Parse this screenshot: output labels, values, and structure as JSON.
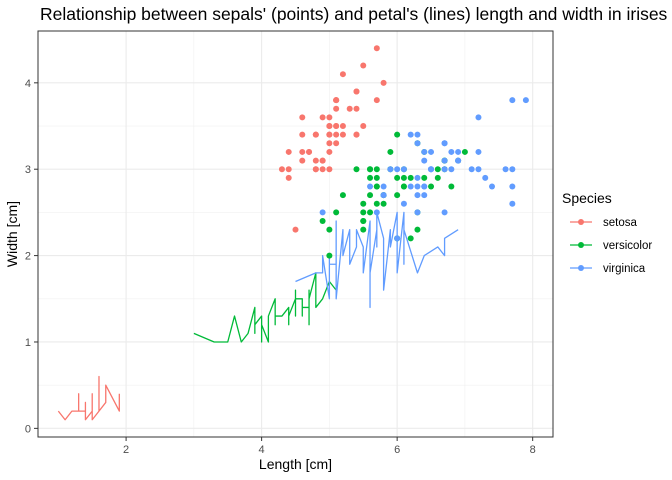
{
  "chart_data": {
    "type": "scatter",
    "title": "Relationship between sepals' (points) and petal's (lines) length and width in irises",
    "xlabel": "Length [cm]",
    "ylabel": "Width [cm]",
    "xlim": [
      0.7,
      8.3
    ],
    "ylim": [
      -0.1,
      4.6
    ],
    "x_ticks": [
      2,
      4,
      6,
      8
    ],
    "y_ticks": [
      0,
      1,
      2,
      3,
      4
    ],
    "grid": true,
    "legend": {
      "title": "Species",
      "placement": "right"
    },
    "series": [
      {
        "name": "setosa",
        "color": "#F8766D",
        "points": [
          [
            5.1,
            3.5
          ],
          [
            4.9,
            3.0
          ],
          [
            4.7,
            3.2
          ],
          [
            4.6,
            3.1
          ],
          [
            5.0,
            3.6
          ],
          [
            5.4,
            3.9
          ],
          [
            4.6,
            3.4
          ],
          [
            5.0,
            3.4
          ],
          [
            4.4,
            2.9
          ],
          [
            4.9,
            3.1
          ],
          [
            5.4,
            3.7
          ],
          [
            4.8,
            3.4
          ],
          [
            4.8,
            3.0
          ],
          [
            4.3,
            3.0
          ],
          [
            5.8,
            4.0
          ],
          [
            5.7,
            4.4
          ],
          [
            5.4,
            3.9
          ],
          [
            5.1,
            3.5
          ],
          [
            5.7,
            3.8
          ],
          [
            5.1,
            3.8
          ],
          [
            5.4,
            3.4
          ],
          [
            5.1,
            3.7
          ],
          [
            4.6,
            3.6
          ],
          [
            5.1,
            3.3
          ],
          [
            4.8,
            3.4
          ],
          [
            5.0,
            3.0
          ],
          [
            5.0,
            3.4
          ],
          [
            5.2,
            3.5
          ],
          [
            5.2,
            3.4
          ],
          [
            4.7,
            3.2
          ],
          [
            4.8,
            3.1
          ],
          [
            5.4,
            3.4
          ],
          [
            5.2,
            4.1
          ],
          [
            5.5,
            4.2
          ],
          [
            4.9,
            3.1
          ],
          [
            5.0,
            3.2
          ],
          [
            5.5,
            3.5
          ],
          [
            4.9,
            3.6
          ],
          [
            4.4,
            3.0
          ],
          [
            5.1,
            3.4
          ],
          [
            5.0,
            3.5
          ],
          [
            4.5,
            2.3
          ],
          [
            4.4,
            3.2
          ],
          [
            5.0,
            3.5
          ],
          [
            5.1,
            3.8
          ],
          [
            4.8,
            3.0
          ],
          [
            5.1,
            3.8
          ],
          [
            4.6,
            3.2
          ],
          [
            5.3,
            3.7
          ],
          [
            5.0,
            3.3
          ]
        ],
        "line": [
          [
            1.0,
            0.2
          ],
          [
            1.1,
            0.1
          ],
          [
            1.2,
            0.2
          ],
          [
            1.3,
            0.2
          ],
          [
            1.3,
            0.4
          ],
          [
            1.3,
            0.2
          ],
          [
            1.4,
            0.2
          ],
          [
            1.4,
            0.3
          ],
          [
            1.4,
            0.1
          ],
          [
            1.5,
            0.2
          ],
          [
            1.5,
            0.4
          ],
          [
            1.5,
            0.1
          ],
          [
            1.6,
            0.2
          ],
          [
            1.6,
            0.6
          ],
          [
            1.6,
            0.2
          ],
          [
            1.7,
            0.3
          ],
          [
            1.7,
            0.5
          ],
          [
            1.9,
            0.2
          ],
          [
            1.9,
            0.4
          ]
        ]
      },
      {
        "name": "versicolor",
        "color": "#00BA38",
        "points": [
          [
            7.0,
            3.2
          ],
          [
            6.4,
            3.2
          ],
          [
            6.9,
            3.1
          ],
          [
            5.5,
            2.3
          ],
          [
            6.5,
            2.8
          ],
          [
            5.7,
            2.8
          ],
          [
            6.3,
            3.3
          ],
          [
            4.9,
            2.4
          ],
          [
            6.6,
            2.9
          ],
          [
            5.2,
            2.7
          ],
          [
            5.0,
            2.0
          ],
          [
            5.9,
            3.0
          ],
          [
            6.0,
            2.2
          ],
          [
            6.1,
            2.9
          ],
          [
            5.6,
            2.9
          ],
          [
            6.7,
            3.1
          ],
          [
            5.6,
            3.0
          ],
          [
            5.8,
            2.7
          ],
          [
            6.2,
            2.2
          ],
          [
            5.6,
            2.5
          ],
          [
            5.9,
            3.2
          ],
          [
            6.1,
            2.8
          ],
          [
            6.3,
            2.5
          ],
          [
            6.1,
            2.8
          ],
          [
            6.4,
            2.9
          ],
          [
            6.6,
            3.0
          ],
          [
            6.8,
            2.8
          ],
          [
            6.7,
            3.0
          ],
          [
            6.0,
            2.9
          ],
          [
            5.7,
            2.6
          ],
          [
            5.5,
            2.4
          ],
          [
            5.5,
            2.4
          ],
          [
            5.8,
            2.7
          ],
          [
            6.0,
            2.7
          ],
          [
            5.4,
            3.0
          ],
          [
            6.0,
            3.4
          ],
          [
            6.7,
            3.1
          ],
          [
            6.3,
            2.3
          ],
          [
            5.6,
            3.0
          ],
          [
            5.5,
            2.5
          ],
          [
            5.5,
            2.6
          ],
          [
            6.1,
            3.0
          ],
          [
            5.8,
            2.6
          ],
          [
            5.0,
            2.3
          ],
          [
            5.6,
            2.7
          ],
          [
            5.7,
            3.0
          ],
          [
            5.7,
            2.9
          ],
          [
            6.2,
            2.9
          ],
          [
            5.1,
            2.5
          ],
          [
            5.7,
            2.8
          ]
        ],
        "line": [
          [
            3.0,
            1.1
          ],
          [
            3.3,
            1.0
          ],
          [
            3.5,
            1.0
          ],
          [
            3.6,
            1.3
          ],
          [
            3.7,
            1.0
          ],
          [
            3.8,
            1.1
          ],
          [
            3.9,
            1.4
          ],
          [
            3.9,
            1.1
          ],
          [
            3.9,
            1.2
          ],
          [
            4.0,
            1.3
          ],
          [
            4.0,
            1.0
          ],
          [
            4.0,
            1.2
          ],
          [
            4.1,
            1.0
          ],
          [
            4.1,
            1.3
          ],
          [
            4.2,
            1.5
          ],
          [
            4.2,
            1.2
          ],
          [
            4.2,
            1.3
          ],
          [
            4.3,
            1.3
          ],
          [
            4.4,
            1.4
          ],
          [
            4.4,
            1.2
          ],
          [
            4.4,
            1.3
          ],
          [
            4.5,
            1.5
          ],
          [
            4.5,
            1.3
          ],
          [
            4.5,
            1.6
          ],
          [
            4.5,
            1.5
          ],
          [
            4.6,
            1.5
          ],
          [
            4.6,
            1.3
          ],
          [
            4.6,
            1.4
          ],
          [
            4.7,
            1.4
          ],
          [
            4.7,
            1.6
          ],
          [
            4.7,
            1.2
          ],
          [
            4.7,
            1.5
          ],
          [
            4.8,
            1.8
          ],
          [
            4.8,
            1.4
          ],
          [
            4.9,
            1.5
          ],
          [
            4.9,
            1.5
          ],
          [
            5.0,
            1.7
          ],
          [
            5.1,
            1.6
          ]
        ]
      },
      {
        "name": "virginica",
        "color": "#619CFF",
        "points": [
          [
            6.3,
            3.3
          ],
          [
            5.8,
            2.7
          ],
          [
            7.1,
            3.0
          ],
          [
            6.3,
            2.9
          ],
          [
            6.5,
            3.0
          ],
          [
            7.6,
            3.0
          ],
          [
            4.9,
            2.5
          ],
          [
            7.3,
            2.9
          ],
          [
            6.7,
            2.5
          ],
          [
            7.2,
            3.6
          ],
          [
            6.5,
            3.2
          ],
          [
            6.4,
            2.7
          ],
          [
            6.8,
            3.0
          ],
          [
            5.7,
            2.5
          ],
          [
            5.8,
            2.8
          ],
          [
            6.4,
            3.2
          ],
          [
            6.5,
            3.0
          ],
          [
            7.7,
            3.8
          ],
          [
            7.7,
            2.6
          ],
          [
            6.0,
            2.2
          ],
          [
            6.9,
            3.2
          ],
          [
            5.6,
            2.8
          ],
          [
            7.7,
            2.8
          ],
          [
            6.3,
            2.7
          ],
          [
            6.7,
            3.3
          ],
          [
            7.2,
            3.2
          ],
          [
            6.2,
            2.8
          ],
          [
            6.1,
            3.0
          ],
          [
            6.4,
            2.8
          ],
          [
            7.2,
            3.0
          ],
          [
            7.4,
            2.8
          ],
          [
            7.9,
            3.8
          ],
          [
            6.4,
            2.8
          ],
          [
            6.3,
            2.8
          ],
          [
            6.1,
            2.6
          ],
          [
            7.7,
            3.0
          ],
          [
            6.3,
            3.4
          ],
          [
            6.4,
            3.1
          ],
          [
            6.0,
            3.0
          ],
          [
            6.9,
            3.1
          ],
          [
            6.7,
            3.1
          ],
          [
            6.9,
            3.1
          ],
          [
            5.8,
            2.7
          ],
          [
            6.8,
            3.2
          ],
          [
            6.7,
            3.3
          ],
          [
            6.7,
            3.0
          ],
          [
            6.3,
            2.5
          ],
          [
            6.5,
            3.0
          ],
          [
            6.2,
            3.4
          ],
          [
            5.9,
            3.0
          ]
        ],
        "line": [
          [
            4.5,
            1.7
          ],
          [
            4.8,
            1.8
          ],
          [
            4.8,
            1.8
          ],
          [
            4.9,
            1.8
          ],
          [
            4.9,
            2.0
          ],
          [
            5.0,
            1.5
          ],
          [
            5.0,
            2.0
          ],
          [
            5.0,
            1.9
          ],
          [
            5.1,
            1.9
          ],
          [
            5.1,
            2.0
          ],
          [
            5.1,
            2.4
          ],
          [
            5.1,
            1.8
          ],
          [
            5.1,
            2.3
          ],
          [
            5.1,
            1.9
          ],
          [
            5.1,
            1.5
          ],
          [
            5.2,
            2.3
          ],
          [
            5.2,
            2.0
          ],
          [
            5.3,
            2.3
          ],
          [
            5.3,
            1.9
          ],
          [
            5.4,
            2.1
          ],
          [
            5.4,
            2.3
          ],
          [
            5.5,
            2.1
          ],
          [
            5.5,
            1.8
          ],
          [
            5.5,
            1.8
          ],
          [
            5.6,
            2.4
          ],
          [
            5.6,
            1.4
          ],
          [
            5.6,
            2.4
          ],
          [
            5.6,
            2.2
          ],
          [
            5.6,
            2.1
          ],
          [
            5.6,
            1.8
          ],
          [
            5.7,
            2.3
          ],
          [
            5.7,
            2.1
          ],
          [
            5.7,
            2.5
          ],
          [
            5.8,
            2.2
          ],
          [
            5.8,
            1.8
          ],
          [
            5.8,
            1.6
          ],
          [
            5.9,
            2.3
          ],
          [
            5.9,
            2.1
          ],
          [
            6.0,
            2.5
          ],
          [
            6.0,
            1.8
          ],
          [
            6.1,
            2.5
          ],
          [
            6.1,
            1.9
          ],
          [
            6.1,
            2.3
          ],
          [
            6.3,
            1.8
          ],
          [
            6.4,
            2.0
          ],
          [
            6.6,
            2.1
          ],
          [
            6.7,
            2.0
          ],
          [
            6.7,
            2.2
          ],
          [
            6.9,
            2.3
          ]
        ]
      }
    ]
  }
}
